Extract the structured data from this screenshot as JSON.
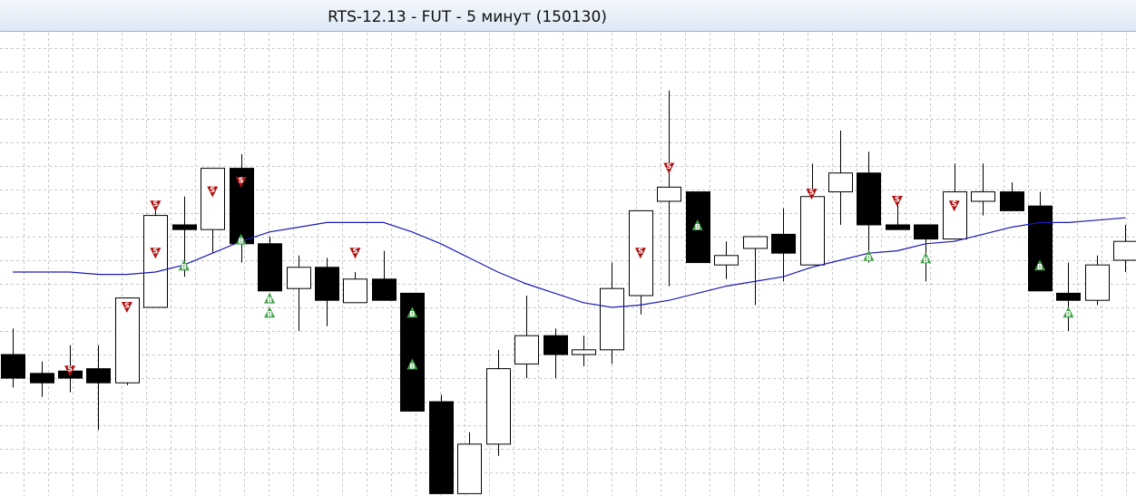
{
  "chart_data": {
    "type": "candlestick",
    "title": "RTS-12.13 - FUT - 5 минут (150130)",
    "xlim": [
      -0.45,
      39.37
    ],
    "ylim": [
      0,
      19.73
    ],
    "yticks": [
      1,
      2,
      3,
      4,
      5,
      6,
      7,
      8,
      9,
      10,
      11,
      12,
      13,
      14,
      15,
      16,
      17,
      18,
      19
    ],
    "grid": true,
    "up_color": "#ffffff",
    "down_color": "#000000",
    "open": [
      6.0,
      5.2,
      5.3,
      5.4,
      4.8,
      8.0,
      11.5,
      11.3,
      13.9,
      10.7,
      8.8,
      9.7,
      8.2,
      9.2,
      8.6,
      4.0,
      0.1,
      2.2,
      5.6,
      6.8,
      6.0,
      6.2,
      8.5,
      12.5,
      12.9,
      9.8,
      10.5,
      11.1,
      9.8,
      12.9,
      13.7,
      11.5,
      11.5,
      10.9,
      12.5,
      12.9,
      12.3,
      8.6,
      8.3,
      10.0
    ],
    "high": [
      7.1,
      5.7,
      6.4,
      6.4,
      8.4,
      12.4,
      12.7,
      13.9,
      14.5,
      11.0,
      10.2,
      10.1,
      9.5,
      10.4,
      8.6,
      4.3,
      2.7,
      6.2,
      8.5,
      7.1,
      6.8,
      9.9,
      12.1,
      17.2,
      12.9,
      10.8,
      11.0,
      12.2,
      14.1,
      15.5,
      14.6,
      12.7,
      11.5,
      14.1,
      14.1,
      13.3,
      12.9,
      9.9,
      10.2,
      11.5
    ],
    "low": [
      4.6,
      4.2,
      4.4,
      2.8,
      4.7,
      8.0,
      9.3,
      10.3,
      9.9,
      8.7,
      7.0,
      7.2,
      8.2,
      8.3,
      3.6,
      0.1,
      0.1,
      1.7,
      5.0,
      5.0,
      5.5,
      5.6,
      7.7,
      8.9,
      9.9,
      9.2,
      8.1,
      9.1,
      9.8,
      11.5,
      9.9,
      11.3,
      9.1,
      10.9,
      11.9,
      12.1,
      8.7,
      7.0,
      8.1,
      9.5
    ],
    "close": [
      5.0,
      4.8,
      5.0,
      4.8,
      8.4,
      11.9,
      11.3,
      13.9,
      10.7,
      8.7,
      9.7,
      8.3,
      9.2,
      8.3,
      3.6,
      0.1,
      2.2,
      5.4,
      6.8,
      6.0,
      6.2,
      8.8,
      12.1,
      13.1,
      9.9,
      10.2,
      11.0,
      10.3,
      12.7,
      13.7,
      11.5,
      11.3,
      10.9,
      12.9,
      12.9,
      12.1,
      8.7,
      8.3,
      9.8,
      10.8
    ],
    "ma": {
      "type": "line",
      "color": "#1a1ab4",
      "values": [
        9.5,
        9.5,
        9.5,
        9.4,
        9.4,
        9.5,
        9.8,
        10.3,
        10.8,
        11.2,
        11.4,
        11.6,
        11.6,
        11.6,
        11.2,
        10.7,
        10.1,
        9.5,
        9.0,
        8.6,
        8.2,
        8.0,
        8.1,
        8.3,
        8.6,
        8.9,
        9.1,
        9.3,
        9.7,
        10.0,
        10.3,
        10.4,
        10.7,
        10.8,
        11.1,
        11.4,
        11.6,
        11.6,
        11.7,
        11.8
      ]
    },
    "signals": [
      {
        "label": "S",
        "direction": "down",
        "color": "#b01010",
        "x": [
          2,
          4,
          5,
          5,
          7,
          8,
          12,
          22,
          23,
          28,
          31,
          33
        ],
        "values": [
          5.3,
          8.0,
          12.3,
          10.3,
          12.9,
          13.3,
          10.3,
          10.3,
          13.9,
          12.8,
          12.5,
          12.3
        ]
      },
      {
        "label": "B",
        "direction": "up",
        "color": "#3f9f46",
        "x": [
          6,
          8,
          9,
          9,
          14,
          14,
          24,
          30,
          32,
          36,
          37
        ],
        "values": [
          9.8,
          10.9,
          8.4,
          7.8,
          7.8,
          5.6,
          11.5,
          10.2,
          10.1,
          9.8,
          7.8
        ]
      }
    ]
  }
}
